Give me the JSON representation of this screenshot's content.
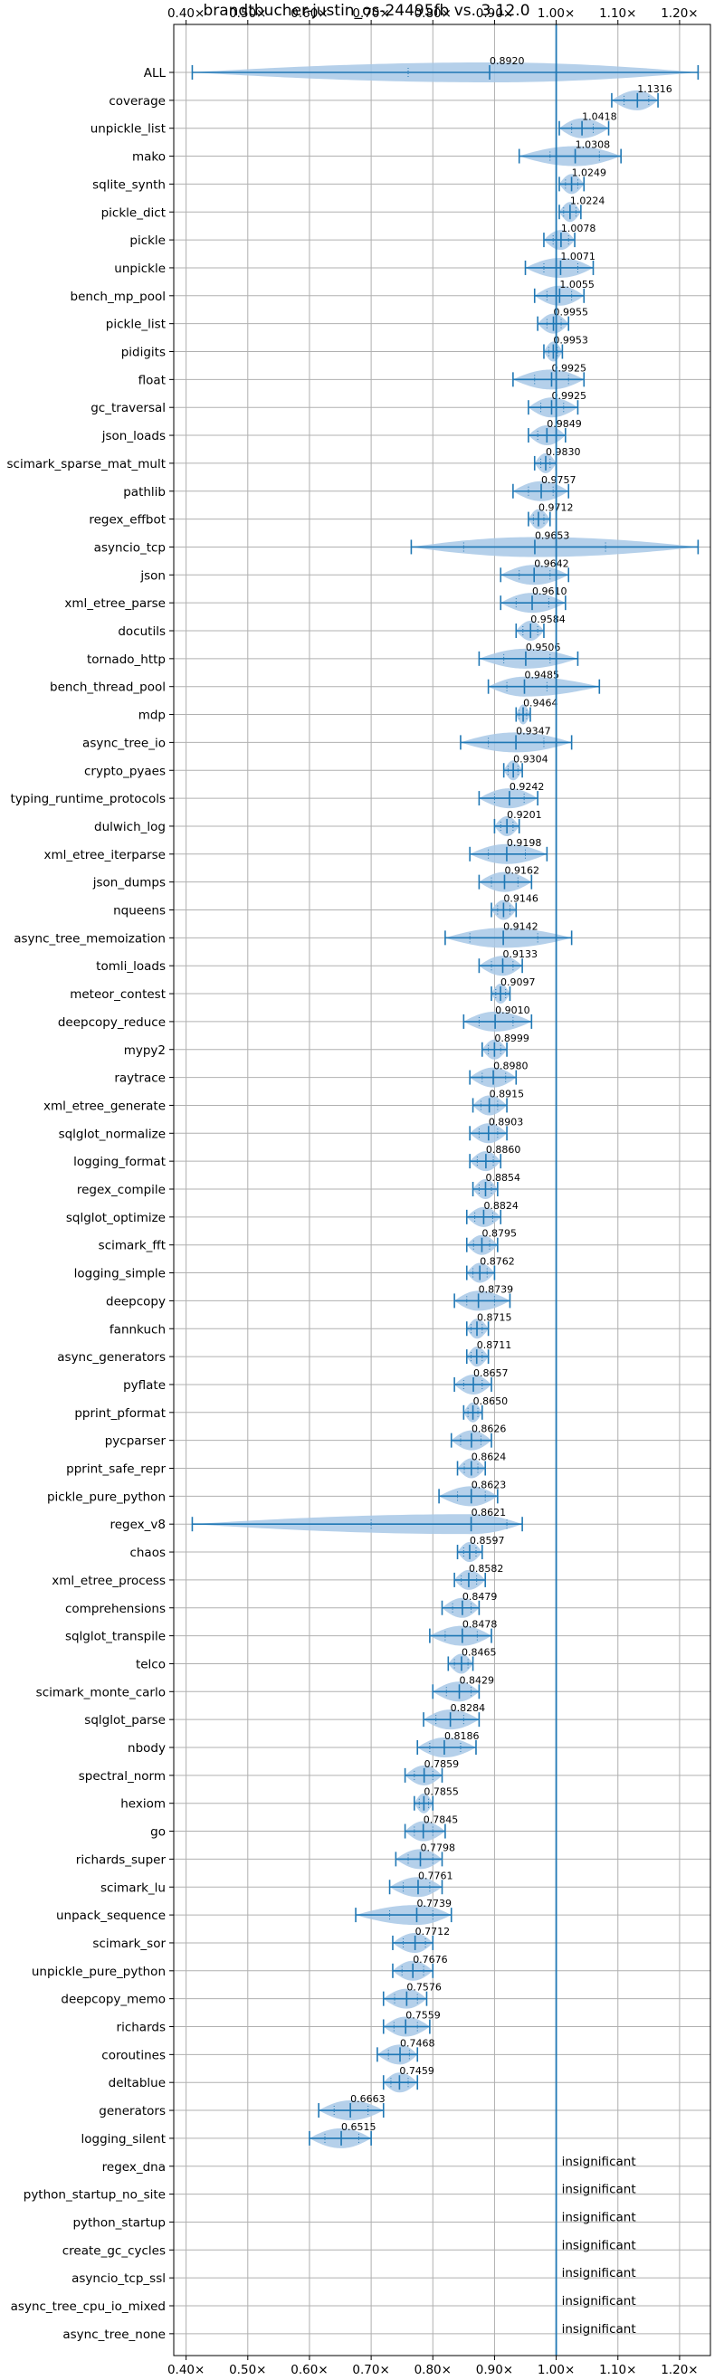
{
  "chart_data": {
    "type": "violin",
    "title": "brandtbucher-justin_os-24495fb vs. 3.12.0",
    "xlabel": "",
    "ylabel": "",
    "xlim": [
      0.38,
      1.25
    ],
    "xticks": [
      0.4,
      0.5,
      0.6,
      0.7,
      0.8,
      0.9,
      1.0,
      1.1,
      1.2
    ],
    "xtick_labels": [
      "0.40×",
      "0.50×",
      "0.60×",
      "0.70×",
      "0.80×",
      "0.90×",
      "1.00×",
      "1.10×",
      "1.20×"
    ],
    "reference_line": 1.0,
    "grid": true,
    "colors": {
      "violin": "#1f77b4",
      "violin_fill": "#a8c8e6",
      "grid": "#b0b0b0"
    },
    "benchmarks": [
      {
        "name": "ALL",
        "label": "0.8920",
        "median": 0.892,
        "min": 0.41,
        "max": 1.23,
        "q1": 0.76,
        "q3": 1.0
      },
      {
        "name": "coverage",
        "label": "1.1316",
        "median": 1.1316,
        "min": 1.09,
        "max": 1.165,
        "q1": 1.11,
        "q3": 1.15
      },
      {
        "name": "unpickle_list",
        "label": "1.0418",
        "median": 1.0418,
        "min": 1.005,
        "max": 1.085,
        "q1": 1.025,
        "q3": 1.06
      },
      {
        "name": "mako",
        "label": "1.0308",
        "median": 1.0308,
        "min": 0.94,
        "max": 1.105,
        "q1": 0.99,
        "q3": 1.07
      },
      {
        "name": "sqlite_synth",
        "label": "1.0249",
        "median": 1.0249,
        "min": 1.005,
        "max": 1.045,
        "q1": 1.015,
        "q3": 1.035
      },
      {
        "name": "pickle_dict",
        "label": "1.0224",
        "median": 1.0224,
        "min": 1.005,
        "max": 1.04,
        "q1": 1.012,
        "q3": 1.032
      },
      {
        "name": "pickle",
        "label": "1.0078",
        "median": 1.0078,
        "min": 0.98,
        "max": 1.03,
        "q1": 0.995,
        "q3": 1.02
      },
      {
        "name": "unpickle",
        "label": "1.0071",
        "median": 1.0071,
        "min": 0.95,
        "max": 1.06,
        "q1": 0.98,
        "q3": 1.035
      },
      {
        "name": "bench_mp_pool",
        "label": "1.0055",
        "median": 1.0055,
        "min": 0.965,
        "max": 1.045,
        "q1": 0.985,
        "q3": 1.025
      },
      {
        "name": "pickle_list",
        "label": "0.9955",
        "median": 0.9955,
        "min": 0.97,
        "max": 1.02,
        "q1": 0.985,
        "q3": 1.008
      },
      {
        "name": "pidigits",
        "label": "0.9953",
        "median": 0.9953,
        "min": 0.98,
        "max": 1.01,
        "q1": 0.988,
        "q3": 1.002
      },
      {
        "name": "float",
        "label": "0.9925",
        "median": 0.9925,
        "min": 0.93,
        "max": 1.045,
        "q1": 0.965,
        "q3": 1.02
      },
      {
        "name": "gc_traversal",
        "label": "0.9925",
        "median": 0.9925,
        "min": 0.955,
        "max": 1.035,
        "q1": 0.975,
        "q3": 1.012
      },
      {
        "name": "json_loads",
        "label": "0.9849",
        "median": 0.9849,
        "min": 0.955,
        "max": 1.015,
        "q1": 0.97,
        "q3": 1.0
      },
      {
        "name": "scimark_sparse_mat_mult",
        "label": "0.9830",
        "median": 0.983,
        "min": 0.965,
        "max": 1.0,
        "q1": 0.975,
        "q3": 0.99
      },
      {
        "name": "pathlib",
        "label": "0.9757",
        "median": 0.9757,
        "min": 0.93,
        "max": 1.02,
        "q1": 0.955,
        "q3": 0.995
      },
      {
        "name": "regex_effbot",
        "label": "0.9712",
        "median": 0.9712,
        "min": 0.955,
        "max": 0.99,
        "q1": 0.963,
        "q3": 0.98
      },
      {
        "name": "asyncio_tcp",
        "label": "0.9653",
        "median": 0.9653,
        "min": 0.765,
        "max": 1.23,
        "q1": 0.85,
        "q3": 1.08
      },
      {
        "name": "json",
        "label": "0.9642",
        "median": 0.9642,
        "min": 0.91,
        "max": 1.02,
        "q1": 0.94,
        "q3": 0.99
      },
      {
        "name": "xml_etree_parse",
        "label": "0.9610",
        "median": 0.961,
        "min": 0.91,
        "max": 1.015,
        "q1": 0.935,
        "q3": 0.988
      },
      {
        "name": "docutils",
        "label": "0.9584",
        "median": 0.9584,
        "min": 0.935,
        "max": 0.98,
        "q1": 0.946,
        "q3": 0.97
      },
      {
        "name": "tornado_http",
        "label": "0.9506",
        "median": 0.9506,
        "min": 0.875,
        "max": 1.035,
        "q1": 0.915,
        "q3": 0.99
      },
      {
        "name": "bench_thread_pool",
        "label": "0.9485",
        "median": 0.9485,
        "min": 0.89,
        "max": 1.07,
        "q1": 0.92,
        "q3": 0.985
      },
      {
        "name": "mdp",
        "label": "0.9464",
        "median": 0.9464,
        "min": 0.935,
        "max": 0.958,
        "q1": 0.94,
        "q3": 0.952
      },
      {
        "name": "async_tree_io",
        "label": "0.9347",
        "median": 0.9347,
        "min": 0.845,
        "max": 1.025,
        "q1": 0.89,
        "q3": 0.98
      },
      {
        "name": "crypto_pyaes",
        "label": "0.9304",
        "median": 0.9304,
        "min": 0.915,
        "max": 0.945,
        "q1": 0.922,
        "q3": 0.938
      },
      {
        "name": "typing_runtime_protocols",
        "label": "0.9242",
        "median": 0.9242,
        "min": 0.875,
        "max": 0.97,
        "q1": 0.9,
        "q3": 0.948
      },
      {
        "name": "dulwich_log",
        "label": "0.9201",
        "median": 0.9201,
        "min": 0.9,
        "max": 0.94,
        "q1": 0.91,
        "q3": 0.93
      },
      {
        "name": "xml_etree_iterparse",
        "label": "0.9198",
        "median": 0.9198,
        "min": 0.86,
        "max": 0.985,
        "q1": 0.89,
        "q3": 0.95
      },
      {
        "name": "json_dumps",
        "label": "0.9162",
        "median": 0.9162,
        "min": 0.875,
        "max": 0.96,
        "q1": 0.895,
        "q3": 0.938
      },
      {
        "name": "nqueens",
        "label": "0.9146",
        "median": 0.9146,
        "min": 0.895,
        "max": 0.935,
        "q1": 0.905,
        "q3": 0.925
      },
      {
        "name": "async_tree_memoization",
        "label": "0.9142",
        "median": 0.9142,
        "min": 0.82,
        "max": 1.025,
        "q1": 0.86,
        "q3": 0.97
      },
      {
        "name": "tomli_loads",
        "label": "0.9133",
        "median": 0.9133,
        "min": 0.875,
        "max": 0.945,
        "q1": 0.895,
        "q3": 0.93
      },
      {
        "name": "meteor_contest",
        "label": "0.9097",
        "median": 0.9097,
        "min": 0.895,
        "max": 0.925,
        "q1": 0.902,
        "q3": 0.918
      },
      {
        "name": "deepcopy_reduce",
        "label": "0.9010",
        "median": 0.901,
        "min": 0.85,
        "max": 0.96,
        "q1": 0.875,
        "q3": 0.93
      },
      {
        "name": "mypy2",
        "label": "0.8999",
        "median": 0.8999,
        "min": 0.88,
        "max": 0.92,
        "q1": 0.89,
        "q3": 0.91
      },
      {
        "name": "raytrace",
        "label": "0.8980",
        "median": 0.898,
        "min": 0.86,
        "max": 0.935,
        "q1": 0.88,
        "q3": 0.918
      },
      {
        "name": "xml_etree_generate",
        "label": "0.8915",
        "median": 0.8915,
        "min": 0.865,
        "max": 0.92,
        "q1": 0.878,
        "q3": 0.905
      },
      {
        "name": "sqlglot_normalize",
        "label": "0.8903",
        "median": 0.8903,
        "min": 0.86,
        "max": 0.92,
        "q1": 0.875,
        "q3": 0.905
      },
      {
        "name": "logging_format",
        "label": "0.8860",
        "median": 0.886,
        "min": 0.86,
        "max": 0.91,
        "q1": 0.872,
        "q3": 0.898
      },
      {
        "name": "regex_compile",
        "label": "0.8854",
        "median": 0.8854,
        "min": 0.865,
        "max": 0.905,
        "q1": 0.875,
        "q3": 0.895
      },
      {
        "name": "sqlglot_optimize",
        "label": "0.8824",
        "median": 0.8824,
        "min": 0.855,
        "max": 0.91,
        "q1": 0.868,
        "q3": 0.897
      },
      {
        "name": "scimark_fft",
        "label": "0.8795",
        "median": 0.8795,
        "min": 0.855,
        "max": 0.905,
        "q1": 0.866,
        "q3": 0.892
      },
      {
        "name": "logging_simple",
        "label": "0.8762",
        "median": 0.8762,
        "min": 0.855,
        "max": 0.9,
        "q1": 0.865,
        "q3": 0.888
      },
      {
        "name": "deepcopy",
        "label": "0.8739",
        "median": 0.8739,
        "min": 0.835,
        "max": 0.925,
        "q1": 0.855,
        "q3": 0.9
      },
      {
        "name": "fannkuch",
        "label": "0.8715",
        "median": 0.8715,
        "min": 0.855,
        "max": 0.89,
        "q1": 0.862,
        "q3": 0.88
      },
      {
        "name": "async_generators",
        "label": "0.8711",
        "median": 0.8711,
        "min": 0.855,
        "max": 0.89,
        "q1": 0.862,
        "q3": 0.88
      },
      {
        "name": "pyflate",
        "label": "0.8657",
        "median": 0.8657,
        "min": 0.835,
        "max": 0.895,
        "q1": 0.85,
        "q3": 0.88
      },
      {
        "name": "pprint_pformat",
        "label": "0.8650",
        "median": 0.865,
        "min": 0.85,
        "max": 0.88,
        "q1": 0.857,
        "q3": 0.873
      },
      {
        "name": "pycparser",
        "label": "0.8626",
        "median": 0.8626,
        "min": 0.83,
        "max": 0.895,
        "q1": 0.845,
        "q3": 0.878
      },
      {
        "name": "pprint_safe_repr",
        "label": "0.8624",
        "median": 0.8624,
        "min": 0.84,
        "max": 0.885,
        "q1": 0.851,
        "q3": 0.873
      },
      {
        "name": "pickle_pure_python",
        "label": "0.8623",
        "median": 0.8623,
        "min": 0.81,
        "max": 0.905,
        "q1": 0.84,
        "q3": 0.885
      },
      {
        "name": "regex_v8",
        "label": "0.8621",
        "median": 0.8621,
        "min": 0.41,
        "max": 0.945,
        "q1": 0.7,
        "q3": 0.92
      },
      {
        "name": "chaos",
        "label": "0.8597",
        "median": 0.8597,
        "min": 0.84,
        "max": 0.88,
        "q1": 0.85,
        "q3": 0.87
      },
      {
        "name": "xml_etree_process",
        "label": "0.8582",
        "median": 0.8582,
        "min": 0.835,
        "max": 0.885,
        "q1": 0.846,
        "q3": 0.871
      },
      {
        "name": "comprehensions",
        "label": "0.8479",
        "median": 0.8479,
        "min": 0.815,
        "max": 0.875,
        "q1": 0.832,
        "q3": 0.862
      },
      {
        "name": "sqlglot_transpile",
        "label": "0.8478",
        "median": 0.8478,
        "min": 0.795,
        "max": 0.895,
        "q1": 0.82,
        "q3": 0.872
      },
      {
        "name": "telco",
        "label": "0.8465",
        "median": 0.8465,
        "min": 0.825,
        "max": 0.865,
        "q1": 0.835,
        "q3": 0.857
      },
      {
        "name": "scimark_monte_carlo",
        "label": "0.8429",
        "median": 0.8429,
        "min": 0.8,
        "max": 0.875,
        "q1": 0.822,
        "q3": 0.862
      },
      {
        "name": "sqlglot_parse",
        "label": "0.8284",
        "median": 0.8284,
        "min": 0.785,
        "max": 0.875,
        "q1": 0.805,
        "q3": 0.85
      },
      {
        "name": "nbody",
        "label": "0.8186",
        "median": 0.8186,
        "min": 0.775,
        "max": 0.87,
        "q1": 0.795,
        "q3": 0.845
      },
      {
        "name": "spectral_norm",
        "label": "0.7859",
        "median": 0.7859,
        "min": 0.755,
        "max": 0.815,
        "q1": 0.77,
        "q3": 0.8
      },
      {
        "name": "hexiom",
        "label": "0.7855",
        "median": 0.7855,
        "min": 0.77,
        "max": 0.8,
        "q1": 0.778,
        "q3": 0.793
      },
      {
        "name": "go",
        "label": "0.7845",
        "median": 0.7845,
        "min": 0.755,
        "max": 0.82,
        "q1": 0.77,
        "q3": 0.8
      },
      {
        "name": "richards_super",
        "label": "0.7798",
        "median": 0.7798,
        "min": 0.74,
        "max": 0.815,
        "q1": 0.76,
        "q3": 0.8
      },
      {
        "name": "scimark_lu",
        "label": "0.7761",
        "median": 0.7761,
        "min": 0.73,
        "max": 0.815,
        "q1": 0.752,
        "q3": 0.795
      },
      {
        "name": "unpack_sequence",
        "label": "0.7739",
        "median": 0.7739,
        "min": 0.675,
        "max": 0.83,
        "q1": 0.73,
        "q3": 0.8
      },
      {
        "name": "scimark_sor",
        "label": "0.7712",
        "median": 0.7712,
        "min": 0.735,
        "max": 0.8,
        "q1": 0.752,
        "q3": 0.788
      },
      {
        "name": "unpickle_pure_python",
        "label": "0.7676",
        "median": 0.7676,
        "min": 0.735,
        "max": 0.8,
        "q1": 0.75,
        "q3": 0.785
      },
      {
        "name": "deepcopy_memo",
        "label": "0.7576",
        "median": 0.7576,
        "min": 0.72,
        "max": 0.79,
        "q1": 0.738,
        "q3": 0.775
      },
      {
        "name": "richards",
        "label": "0.7559",
        "median": 0.7559,
        "min": 0.72,
        "max": 0.795,
        "q1": 0.737,
        "q3": 0.775
      },
      {
        "name": "coroutines",
        "label": "0.7468",
        "median": 0.7468,
        "min": 0.71,
        "max": 0.775,
        "q1": 0.728,
        "q3": 0.762
      },
      {
        "name": "deltablue",
        "label": "0.7459",
        "median": 0.7459,
        "min": 0.72,
        "max": 0.775,
        "q1": 0.732,
        "q3": 0.76
      },
      {
        "name": "generators",
        "label": "0.6663",
        "median": 0.6663,
        "min": 0.615,
        "max": 0.72,
        "q1": 0.64,
        "q3": 0.695
      },
      {
        "name": "logging_silent",
        "label": "0.6515",
        "median": 0.6515,
        "min": 0.6,
        "max": 0.7,
        "q1": 0.625,
        "q3": 0.68
      },
      {
        "name": "regex_dna",
        "label": "insignificant"
      },
      {
        "name": "python_startup_no_site",
        "label": "insignificant"
      },
      {
        "name": "python_startup",
        "label": "insignificant"
      },
      {
        "name": "create_gc_cycles",
        "label": "insignificant"
      },
      {
        "name": "asyncio_tcp_ssl",
        "label": "insignificant"
      },
      {
        "name": "async_tree_cpu_io_mixed",
        "label": "insignificant"
      },
      {
        "name": "async_tree_none",
        "label": "insignificant"
      }
    ]
  }
}
